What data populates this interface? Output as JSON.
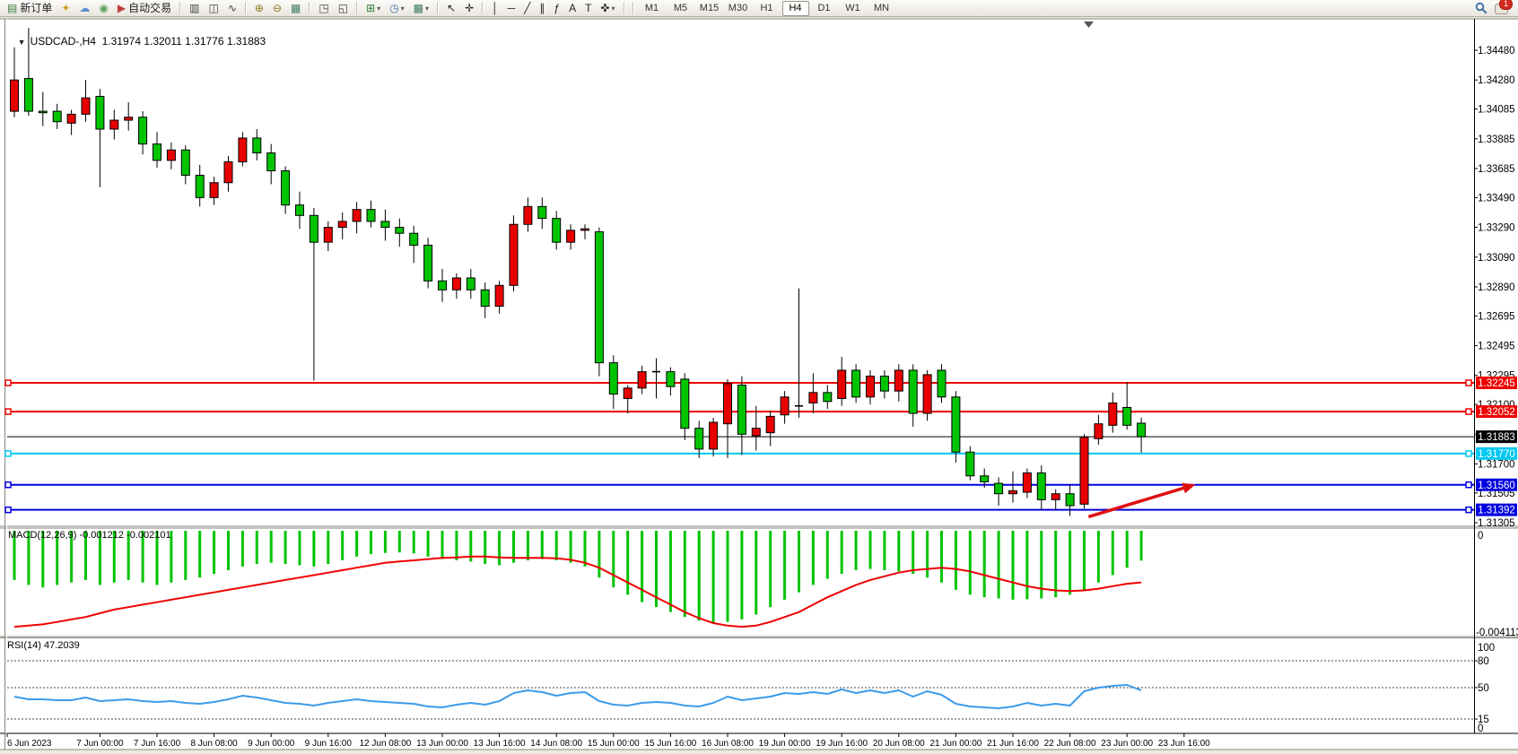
{
  "toolbar": {
    "groups": [
      {
        "name": "trade",
        "items": [
          {
            "icon": "new-order-icon",
            "label": "新订单"
          },
          {
            "icon": "styler-icon"
          },
          {
            "icon": "publisher-icon"
          },
          {
            "icon": "news-icon"
          },
          {
            "icon": "auto-trading-icon",
            "label": "自动交易"
          }
        ]
      },
      {
        "name": "chart-type",
        "items": [
          {
            "icon": "bar-chart-icon"
          },
          {
            "icon": "candlestick-chart-icon"
          },
          {
            "icon": "line-chart-icon"
          }
        ]
      },
      {
        "name": "zoom",
        "items": [
          {
            "icon": "zoom-in-icon"
          },
          {
            "icon": "zoom-out-icon"
          },
          {
            "icon": "tile-windows-icon"
          }
        ]
      },
      {
        "name": "windows",
        "items": [
          {
            "icon": "indicators-window-icon"
          },
          {
            "icon": "period-separators-icon"
          }
        ]
      },
      {
        "name": "insert",
        "items": [
          {
            "icon": "add-indicator-icon",
            "dropdown": true
          },
          {
            "icon": "periods-icon",
            "dropdown": true
          },
          {
            "icon": "templates-icon",
            "dropdown": true
          }
        ]
      },
      {
        "name": "cursor",
        "items": [
          {
            "icon": "cursor-icon"
          },
          {
            "icon": "crosshair-icon"
          }
        ]
      },
      {
        "name": "objects",
        "items": [
          {
            "icon": "vertical-line-icon"
          },
          {
            "icon": "horizontal-line-icon"
          },
          {
            "icon": "trendline-icon"
          },
          {
            "icon": "equidistant-channel-icon"
          },
          {
            "icon": "fibonacci-icon"
          },
          {
            "icon": "text-icon"
          },
          {
            "icon": "text-label-icon"
          },
          {
            "icon": "arrows-icon",
            "dropdown": true
          }
        ]
      }
    ],
    "timeframes": [
      "M1",
      "M5",
      "M15",
      "M30",
      "H1",
      "H4",
      "D1",
      "W1",
      "MN"
    ],
    "active_timeframe": "H4",
    "right": {
      "chat_badge": "1"
    }
  },
  "chart_window": {
    "symbol": "USDCAD-,H4",
    "ohlc_text": "1.31974 1.32011 1.31776 1.31883",
    "macd_label": "MACD(12,26,9) -0.001212 -0.002101",
    "rsi_label": "RSI(14) 47.2039"
  },
  "chart_data": [
    {
      "type": "candlestick",
      "title": "USDCAD-,H4",
      "open": 1.31974,
      "high": 1.32011,
      "low": 1.31776,
      "close": 1.31883,
      "bull_color": "#e80000",
      "bear_color": "#00c400",
      "ylim": [
        1.31275,
        1.34685
      ],
      "y_ticks": [
        "1.34480",
        "1.34280",
        "1.34085",
        "1.33885",
        "1.33685",
        "1.33490",
        "1.33290",
        "1.33090",
        "1.32890",
        "1.32695",
        "1.32495",
        "1.32295",
        "1.32100",
        "1.31900",
        "1.31700",
        "1.31505",
        "1.31305"
      ],
      "x_labels": [
        "6 Jun 2023",
        "7 Jun 00:00",
        "7 Jun 16:00",
        "8 Jun 08:00",
        "9 Jun 00:00",
        "9 Jun 16:00",
        "12 Jun 08:00",
        "13 Jun 00:00",
        "13 Jun 16:00",
        "14 Jun 08:00",
        "15 Jun 00:00",
        "15 Jun 16:00",
        "16 Jun 08:00",
        "19 Jun 00:00",
        "19 Jun 16:00",
        "20 Jun 08:00",
        "21 Jun 00:00",
        "21 Jun 16:00",
        "22 Jun 08:00",
        "23 Jun 00:00",
        "23 Jun 16:00"
      ],
      "hlines": [
        {
          "price": 1.32245,
          "label": "1.32245",
          "color": "#ee0000",
          "width": 2,
          "handles": true
        },
        {
          "price": 1.32052,
          "label": "1.32052",
          "color": "#ee0000",
          "width": 2,
          "handles": true
        },
        {
          "price": 1.31883,
          "label": "1.31883",
          "color": "#000000",
          "width": 1,
          "handles": false,
          "role": "bid-line"
        },
        {
          "price": 1.3177,
          "label": "1.31770",
          "color": "#00c8f0",
          "width": 2,
          "handles": true
        },
        {
          "price": 1.3156,
          "label": "1.31560",
          "color": "#0000e0",
          "width": 2,
          "handles": true
        },
        {
          "price": 1.31392,
          "label": "1.31392",
          "color": "#0000e0",
          "width": 2,
          "handles": true
        }
      ],
      "trend_arrow": {
        "from_bar": 75.3,
        "from_price": 1.31345,
        "to_bar": 82.8,
        "to_price": 1.31562,
        "color": "#e01010"
      },
      "candles": [
        [
          1.3407,
          1.345,
          1.3403,
          1.3428
        ],
        [
          1.3429,
          1.3463,
          1.3404,
          1.3407
        ],
        [
          1.3407,
          1.342,
          1.3397,
          1.3406
        ],
        [
          1.3407,
          1.3412,
          1.3395,
          1.34
        ],
        [
          1.3399,
          1.3408,
          1.3391,
          1.3405
        ],
        [
          1.3405,
          1.3428,
          1.34,
          1.3416
        ],
        [
          1.3417,
          1.3422,
          1.3356,
          1.3395
        ],
        [
          1.3395,
          1.3408,
          1.3388,
          1.3401
        ],
        [
          1.3401,
          1.3413,
          1.3394,
          1.3403
        ],
        [
          1.3403,
          1.3407,
          1.3378,
          1.3385
        ],
        [
          1.3385,
          1.3393,
          1.3369,
          1.3374
        ],
        [
          1.3374,
          1.3386,
          1.3368,
          1.3381
        ],
        [
          1.3381,
          1.3384,
          1.3358,
          1.3364
        ],
        [
          1.3364,
          1.3371,
          1.3343,
          1.3349
        ],
        [
          1.3349,
          1.3363,
          1.3344,
          1.3359
        ],
        [
          1.3359,
          1.3377,
          1.3353,
          1.3373
        ],
        [
          1.3373,
          1.3393,
          1.337,
          1.3389
        ],
        [
          1.3389,
          1.3395,
          1.3374,
          1.3379
        ],
        [
          1.3379,
          1.3385,
          1.3358,
          1.3367
        ],
        [
          1.3367,
          1.337,
          1.3338,
          1.3344
        ],
        [
          1.3344,
          1.3353,
          1.3328,
          1.3337
        ],
        [
          1.3337,
          1.3342,
          1.3226,
          1.3319
        ],
        [
          1.3319,
          1.3333,
          1.3313,
          1.3329
        ],
        [
          1.3329,
          1.3339,
          1.3321,
          1.3333
        ],
        [
          1.3333,
          1.3346,
          1.3325,
          1.3341
        ],
        [
          1.3341,
          1.3347,
          1.3329,
          1.3333
        ],
        [
          1.3333,
          1.3341,
          1.332,
          1.3329
        ],
        [
          1.3329,
          1.3335,
          1.3316,
          1.3325
        ],
        [
          1.3325,
          1.333,
          1.3305,
          1.3317
        ],
        [
          1.3317,
          1.3322,
          1.3288,
          1.3293
        ],
        [
          1.3293,
          1.3301,
          1.3279,
          1.3287
        ],
        [
          1.3287,
          1.3298,
          1.3281,
          1.3295
        ],
        [
          1.3295,
          1.3301,
          1.3281,
          1.3287
        ],
        [
          1.3287,
          1.3292,
          1.3268,
          1.3276
        ],
        [
          1.3276,
          1.3293,
          1.3271,
          1.329
        ],
        [
          1.329,
          1.3337,
          1.3286,
          1.3331
        ],
        [
          1.3331,
          1.3349,
          1.3326,
          1.3343
        ],
        [
          1.3343,
          1.3349,
          1.3328,
          1.3335
        ],
        [
          1.3335,
          1.334,
          1.3314,
          1.3319
        ],
        [
          1.3319,
          1.3331,
          1.3314,
          1.3327
        ],
        [
          1.3327,
          1.3331,
          1.3321,
          1.3328
        ],
        [
          1.3326,
          1.3329,
          1.3229,
          1.3238
        ],
        [
          1.3238,
          1.3243,
          1.3207,
          1.3217
        ],
        [
          1.3214,
          1.3223,
          1.3204,
          1.3221
        ],
        [
          1.3221,
          1.3236,
          1.3217,
          1.3232
        ],
        [
          1.3232,
          1.3241,
          1.3214,
          1.3232
        ],
        [
          1.3232,
          1.3235,
          1.3216,
          1.3222
        ],
        [
          1.3227,
          1.3231,
          1.3186,
          1.3194
        ],
        [
          1.3194,
          1.3199,
          1.3174,
          1.318
        ],
        [
          1.318,
          1.3201,
          1.3175,
          1.3198
        ],
        [
          1.3197,
          1.3227,
          1.3174,
          1.3224
        ],
        [
          1.3223,
          1.3229,
          1.3176,
          1.319
        ],
        [
          1.3189,
          1.3209,
          1.3179,
          1.3194
        ],
        [
          1.3191,
          1.3206,
          1.3182,
          1.3202
        ],
        [
          1.3203,
          1.3219,
          1.3197,
          1.3215
        ],
        [
          1.3209,
          1.3288,
          1.3201,
          1.3209
        ],
        [
          1.3211,
          1.3231,
          1.3204,
          1.3218
        ],
        [
          1.3218,
          1.3223,
          1.3207,
          1.3212
        ],
        [
          1.3214,
          1.3242,
          1.3209,
          1.3233
        ],
        [
          1.3233,
          1.3237,
          1.3211,
          1.3215
        ],
        [
          1.3215,
          1.3233,
          1.321,
          1.3229
        ],
        [
          1.3229,
          1.3233,
          1.3214,
          1.3219
        ],
        [
          1.3219,
          1.3237,
          1.3212,
          1.3233
        ],
        [
          1.3233,
          1.3237,
          1.3195,
          1.3204
        ],
        [
          1.3204,
          1.3233,
          1.3199,
          1.323
        ],
        [
          1.3233,
          1.3237,
          1.3211,
          1.3215
        ],
        [
          1.3215,
          1.3219,
          1.3171,
          1.3178
        ],
        [
          1.3178,
          1.3182,
          1.3159,
          1.3162
        ],
        [
          1.3162,
          1.3167,
          1.3154,
          1.3158
        ],
        [
          1.3157,
          1.3161,
          1.3142,
          1.315
        ],
        [
          1.315,
          1.3165,
          1.3144,
          1.3152
        ],
        [
          1.3151,
          1.3167,
          1.3147,
          1.3164
        ],
        [
          1.3164,
          1.3169,
          1.3139,
          1.3146
        ],
        [
          1.3146,
          1.3153,
          1.3139,
          1.315
        ],
        [
          1.315,
          1.3156,
          1.3135,
          1.3142
        ],
        [
          1.3143,
          1.319,
          1.314,
          1.3188
        ],
        [
          1.3187,
          1.3203,
          1.3183,
          1.3197
        ],
        [
          1.3196,
          1.3218,
          1.3191,
          1.3211
        ],
        [
          1.3208,
          1.3225,
          1.3193,
          1.3196
        ],
        [
          1.31974,
          1.32011,
          1.31776,
          1.31883
        ]
      ]
    },
    {
      "type": "macd",
      "label": "MACD(12,26,9)",
      "current_value": -0.001212,
      "signal_value": -0.002101,
      "scale_labels": [
        "0",
        "-0.004113"
      ],
      "scale_min": -0.004113,
      "hist_color": "#00c400",
      "signal_color": "#f00000",
      "histogram": [
        -0.002,
        -0.0022,
        -0.0023,
        -0.0022,
        -0.0021,
        -0.002,
        -0.0022,
        -0.0021,
        -0.002,
        -0.0021,
        -0.0022,
        -0.0021,
        -0.002,
        -0.0019,
        -0.00175,
        -0.0016,
        -0.00145,
        -0.00135,
        -0.0013,
        -0.00135,
        -0.0014,
        -0.00145,
        -0.00135,
        -0.0012,
        -0.00105,
        -0.00095,
        -0.0009,
        -0.00088,
        -0.00092,
        -0.00105,
        -0.00115,
        -0.0012,
        -0.00125,
        -0.00135,
        -0.0014,
        -0.0013,
        -0.0012,
        -0.00115,
        -0.0012,
        -0.0013,
        -0.00145,
        -0.0019,
        -0.0023,
        -0.0026,
        -0.0029,
        -0.0031,
        -0.0033,
        -0.0035,
        -0.00365,
        -0.00375,
        -0.0037,
        -0.0036,
        -0.0034,
        -0.0031,
        -0.0028,
        -0.0025,
        -0.0022,
        -0.00195,
        -0.00175,
        -0.0016,
        -0.00155,
        -0.0016,
        -0.00165,
        -0.00175,
        -0.0019,
        -0.0021,
        -0.0024,
        -0.0026,
        -0.0027,
        -0.00275,
        -0.0028,
        -0.00278,
        -0.00275,
        -0.0027,
        -0.0026,
        -0.0024,
        -0.0021,
        -0.0018,
        -0.0015,
        -0.001212
      ],
      "signal": [
        -0.0039,
        -0.00385,
        -0.0038,
        -0.0037,
        -0.0036,
        -0.0035,
        -0.00335,
        -0.0032,
        -0.0031,
        -0.003,
        -0.0029,
        -0.0028,
        -0.0027,
        -0.0026,
        -0.0025,
        -0.0024,
        -0.0023,
        -0.0022,
        -0.0021,
        -0.002,
        -0.0019,
        -0.0018,
        -0.0017,
        -0.0016,
        -0.0015,
        -0.0014,
        -0.0013,
        -0.00125,
        -0.0012,
        -0.00115,
        -0.0011,
        -0.00108,
        -0.00105,
        -0.00105,
        -0.00108,
        -0.0011,
        -0.0011,
        -0.0011,
        -0.00112,
        -0.00118,
        -0.0013,
        -0.0015,
        -0.0018,
        -0.0021,
        -0.0024,
        -0.0027,
        -0.003,
        -0.0033,
        -0.00355,
        -0.00375,
        -0.00385,
        -0.0039,
        -0.00385,
        -0.0037,
        -0.0035,
        -0.0033,
        -0.003,
        -0.0027,
        -0.00245,
        -0.0022,
        -0.002,
        -0.00185,
        -0.0017,
        -0.0016,
        -0.00155,
        -0.0015,
        -0.00155,
        -0.00165,
        -0.0018,
        -0.00195,
        -0.0021,
        -0.00225,
        -0.00235,
        -0.00242,
        -0.00245,
        -0.00242,
        -0.00235,
        -0.00225,
        -0.00215,
        -0.002101
      ]
    },
    {
      "type": "rsi",
      "label": "RSI(14)",
      "current_value": 47.2039,
      "levels": [
        100,
        80,
        50,
        15,
        0
      ],
      "dashed_levels": [
        80,
        50,
        15
      ],
      "line_color": "#3d9be9",
      "values": [
        40,
        37,
        37,
        36,
        36,
        39,
        35,
        36,
        37,
        35,
        34,
        35,
        33,
        32,
        34,
        37,
        41,
        39,
        36,
        33,
        32,
        30,
        33,
        35,
        37,
        35,
        34,
        33,
        32,
        29,
        28,
        31,
        33,
        31,
        35,
        44,
        47,
        45,
        41,
        44,
        45,
        35,
        31,
        30,
        33,
        34,
        33,
        30,
        29,
        33,
        40,
        36,
        38,
        40,
        44,
        43,
        45,
        43,
        48,
        44,
        47,
        44,
        47,
        40,
        46,
        42,
        32,
        29,
        28,
        27,
        29,
        33,
        30,
        32,
        30,
        46,
        50,
        52,
        53,
        47
      ]
    }
  ]
}
